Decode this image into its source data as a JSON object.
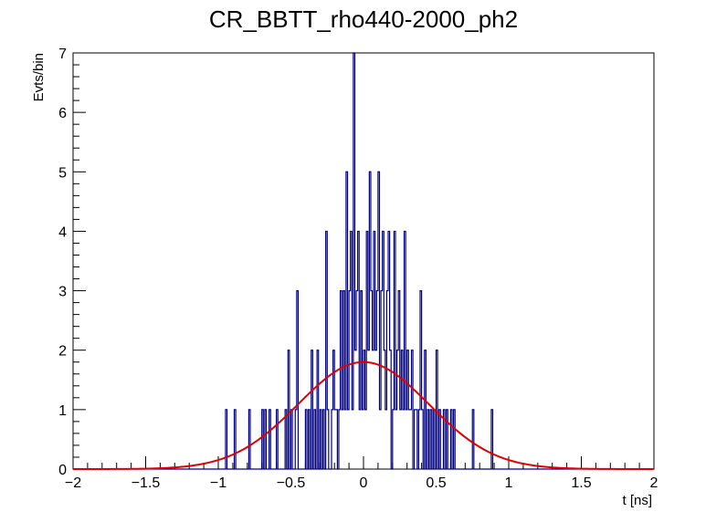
{
  "chart_data": {
    "type": "histogram",
    "title": "CR_BBTT_rho440-2000_ph2",
    "xlabel": "t [ns]",
    "ylabel": "Evts/bin",
    "xlim": [
      -2,
      2
    ],
    "ylim": [
      0,
      7
    ],
    "xticks": [
      -2,
      -1.5,
      -1,
      -0.5,
      0,
      0.5,
      1,
      1.5,
      2
    ],
    "xtick_labels": [
      "−2",
      "−1.5",
      "−1",
      "−0.5",
      "0",
      "0.5",
      "1",
      "1.5",
      "2"
    ],
    "yticks": [
      0,
      1,
      2,
      3,
      4,
      5,
      6,
      7
    ],
    "ytick_labels": [
      "0",
      "1",
      "2",
      "3",
      "4",
      "5",
      "6",
      "7"
    ],
    "grid": false,
    "bin_width": 0.01,
    "series": [
      {
        "name": "histogram",
        "color": "#000080",
        "bins": [
          [
            -0.95,
            1
          ],
          [
            -0.89,
            1
          ],
          [
            -0.79,
            1
          ],
          [
            -0.7,
            1
          ],
          [
            -0.68,
            1
          ],
          [
            -0.65,
            1
          ],
          [
            -0.6,
            1
          ],
          [
            -0.54,
            1
          ],
          [
            -0.52,
            2
          ],
          [
            -0.5,
            1
          ],
          [
            -0.47,
            1
          ],
          [
            -0.46,
            3
          ],
          [
            -0.4,
            1
          ],
          [
            -0.38,
            1
          ],
          [
            -0.36,
            2
          ],
          [
            -0.34,
            1
          ],
          [
            -0.32,
            2
          ],
          [
            -0.3,
            1
          ],
          [
            -0.28,
            1
          ],
          [
            -0.26,
            4
          ],
          [
            -0.25,
            1
          ],
          [
            -0.22,
            1
          ],
          [
            -0.21,
            2
          ],
          [
            -0.2,
            1
          ],
          [
            -0.19,
            1
          ],
          [
            -0.17,
            1
          ],
          [
            -0.16,
            3
          ],
          [
            -0.15,
            1
          ],
          [
            -0.14,
            3
          ],
          [
            -0.13,
            1
          ],
          [
            -0.12,
            5
          ],
          [
            -0.11,
            1
          ],
          [
            -0.1,
            3
          ],
          [
            -0.09,
            4
          ],
          [
            -0.08,
            1
          ],
          [
            -0.07,
            7
          ],
          [
            -0.06,
            2
          ],
          [
            -0.05,
            3
          ],
          [
            -0.04,
            4
          ],
          [
            -0.03,
            1
          ],
          [
            -0.02,
            3
          ],
          [
            -0.01,
            1
          ],
          [
            0.0,
            2
          ],
          [
            0.01,
            1
          ],
          [
            0.02,
            4
          ],
          [
            0.03,
            2
          ],
          [
            0.04,
            5
          ],
          [
            0.05,
            3
          ],
          [
            0.06,
            2
          ],
          [
            0.07,
            4
          ],
          [
            0.08,
            2
          ],
          [
            0.09,
            3
          ],
          [
            0.1,
            5
          ],
          [
            0.11,
            1
          ],
          [
            0.12,
            3
          ],
          [
            0.13,
            4
          ],
          [
            0.14,
            2
          ],
          [
            0.15,
            1
          ],
          [
            0.16,
            3
          ],
          [
            0.17,
            4
          ],
          [
            0.18,
            2
          ],
          [
            0.2,
            1
          ],
          [
            0.21,
            4
          ],
          [
            0.22,
            1
          ],
          [
            0.23,
            2
          ],
          [
            0.24,
            3
          ],
          [
            0.25,
            1
          ],
          [
            0.26,
            2
          ],
          [
            0.27,
            1
          ],
          [
            0.28,
            4
          ],
          [
            0.29,
            1
          ],
          [
            0.3,
            2
          ],
          [
            0.31,
            1
          ],
          [
            0.32,
            1
          ],
          [
            0.33,
            2
          ],
          [
            0.35,
            1
          ],
          [
            0.36,
            1
          ],
          [
            0.38,
            1
          ],
          [
            0.39,
            3
          ],
          [
            0.4,
            1
          ],
          [
            0.42,
            2
          ],
          [
            0.44,
            1
          ],
          [
            0.46,
            1
          ],
          [
            0.48,
            1
          ],
          [
            0.5,
            2
          ],
          [
            0.52,
            1
          ],
          [
            0.55,
            1
          ],
          [
            0.57,
            1
          ],
          [
            0.6,
            1
          ],
          [
            0.62,
            1
          ],
          [
            0.75,
            1
          ],
          [
            0.88,
            1
          ]
        ]
      },
      {
        "name": "gaussian fit",
        "color": "#e00000",
        "function": "gaussian",
        "amplitude": 1.8,
        "mean": 0.0,
        "sigma": 0.45
      }
    ]
  }
}
